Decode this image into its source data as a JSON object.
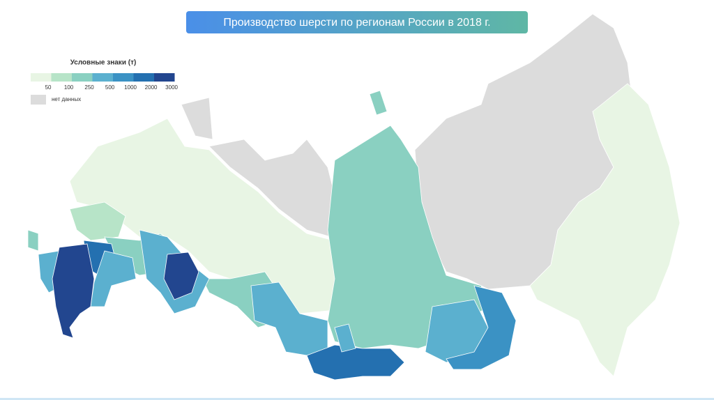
{
  "header": {
    "title": "Производство шерсти по регионам России в 2018 г."
  },
  "legend": {
    "title": "Условные знаки (т)",
    "classes": [
      {
        "label": "50",
        "color": "#e8f5e4"
      },
      {
        "label": "100",
        "color": "#b7e4c8"
      },
      {
        "label": "250",
        "color": "#8ad0c1"
      },
      {
        "label": "500",
        "color": "#5bb0cf"
      },
      {
        "label": "1000",
        "color": "#3b92c4"
      },
      {
        "label": "2000",
        "color": "#2470b0"
      },
      {
        "label": "3000",
        "color": "#22468f"
      }
    ],
    "no_data": {
      "label": "нет данных",
      "color": "#dcdcdc"
    }
  }
}
